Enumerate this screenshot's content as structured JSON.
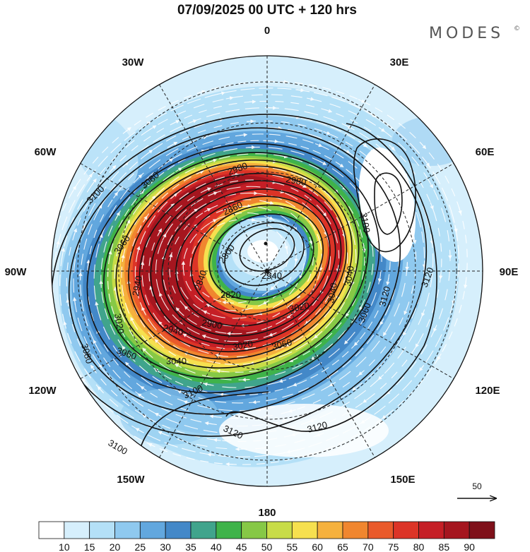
{
  "title": "07/09/2025  00 UTC  + 120 hrs",
  "brand": {
    "name": "MODES",
    "mark": "©"
  },
  "longitude_labels": [
    {
      "key": "0",
      "text": "0"
    },
    {
      "key": "30e",
      "text": "30E"
    },
    {
      "key": "60e",
      "text": "60E"
    },
    {
      "key": "90e",
      "text": "90E"
    },
    {
      "key": "120e",
      "text": "120E"
    },
    {
      "key": "150e",
      "text": "150E"
    },
    {
      "key": "180",
      "text": "180"
    },
    {
      "key": "150w",
      "text": "150W"
    },
    {
      "key": "120w",
      "text": "120W"
    },
    {
      "key": "90w",
      "text": "90W"
    },
    {
      "key": "60w",
      "text": "60W"
    },
    {
      "key": "30w",
      "text": "30W"
    }
  ],
  "contour_labels": [
    "2800",
    "2820",
    "2840",
    "2860",
    "2900",
    "2940",
    "2980",
    "3020",
    "3040",
    "3060",
    "3080",
    "3100",
    "3120"
  ],
  "contour_label_instances": [
    {
      "key": "c1",
      "text": "3100"
    },
    {
      "key": "c2",
      "text": "3080"
    },
    {
      "key": "c3",
      "text": "3060"
    },
    {
      "key": "c4",
      "text": "3020"
    },
    {
      "key": "c5",
      "text": "3080"
    },
    {
      "key": "c6",
      "text": "3060"
    },
    {
      "key": "c7",
      "text": "3040"
    },
    {
      "key": "c8",
      "text": "3020"
    },
    {
      "key": "c9",
      "text": "3100"
    },
    {
      "key": "c10",
      "text": "3100"
    },
    {
      "key": "c11",
      "text": "3120"
    },
    {
      "key": "c12",
      "text": "3120"
    },
    {
      "key": "c13",
      "text": "3060"
    },
    {
      "key": "c14",
      "text": "3040"
    },
    {
      "key": "c15",
      "text": "3120"
    },
    {
      "key": "c16",
      "text": "3120"
    },
    {
      "key": "c17",
      "text": "2900"
    },
    {
      "key": "c18",
      "text": "2940"
    },
    {
      "key": "c19",
      "text": "2820"
    },
    {
      "key": "c20",
      "text": "2840"
    },
    {
      "key": "c21",
      "text": "2800"
    },
    {
      "key": "c22",
      "text": "2980"
    },
    {
      "key": "c23",
      "text": "2860"
    },
    {
      "key": "c24",
      "text": "3040"
    },
    {
      "key": "c25",
      "text": "3060"
    },
    {
      "key": "c26",
      "text": "2940"
    },
    {
      "key": "c27",
      "text": "3020"
    },
    {
      "key": "c28",
      "text": "2980"
    },
    {
      "key": "c29",
      "text": "3100"
    },
    {
      "key": "c30",
      "text": "2940"
    }
  ],
  "reference_vector": {
    "value": "50"
  },
  "colorbar": {
    "labels": [
      "10",
      "15",
      "20",
      "25",
      "30",
      "35",
      "40",
      "45",
      "50",
      "55",
      "60",
      "65",
      "70",
      "75",
      "80",
      "85",
      "90"
    ],
    "colors": [
      "#ffffff",
      "#d6effc",
      "#b4e0f7",
      "#8fc9ef",
      "#62a7de",
      "#4388c8",
      "#40a48c",
      "#3fb34a",
      "#86c846",
      "#c8dc48",
      "#f6e04f",
      "#f5b13e",
      "#f0862f",
      "#e95a2b",
      "#dc3427",
      "#c51f26",
      "#a5161f",
      "#7f111a"
    ]
  },
  "speed_field": [
    {
      "r": 1.0,
      "rx": 305,
      "ry": 312,
      "dx": 0,
      "dy": 0,
      "color": "#d6effc"
    },
    {
      "r": 0.92,
      "rx": 285,
      "ry": 268,
      "dx": -12,
      "dy": 8,
      "color": "#b4e0f7"
    },
    {
      "r": 0.8,
      "rx": 262,
      "ry": 222,
      "dx": -34,
      "dy": 6,
      "color": "#8fc9ef"
    },
    {
      "r": 0.7,
      "rx": 238,
      "ry": 196,
      "dx": -42,
      "dy": 2,
      "color": "#62a7de"
    },
    {
      "r": 0.62,
      "rx": 218,
      "ry": 180,
      "dx": -46,
      "dy": 0,
      "color": "#4388c8"
    },
    {
      "r": 0.56,
      "rx": 202,
      "ry": 168,
      "dx": -46,
      "dy": -2,
      "color": "#40a48c"
    },
    {
      "r": 0.52,
      "rx": 192,
      "ry": 160,
      "dx": -46,
      "dy": -4,
      "color": "#3fb34a"
    },
    {
      "r": 0.49,
      "rx": 184,
      "ry": 154,
      "dx": -46,
      "dy": -6,
      "color": "#86c846"
    },
    {
      "r": 0.46,
      "rx": 176,
      "ry": 149,
      "dx": -46,
      "dy": -8,
      "color": "#c8dc48"
    },
    {
      "r": 0.44,
      "rx": 170,
      "ry": 144,
      "dx": -46,
      "dy": -10,
      "color": "#f6e04f"
    },
    {
      "r": 0.42,
      "rx": 164,
      "ry": 140,
      "dx": -46,
      "dy": -11,
      "color": "#f5b13e"
    },
    {
      "r": 0.4,
      "rx": 158,
      "ry": 136,
      "dx": -46,
      "dy": -12,
      "color": "#f0862f"
    },
    {
      "r": 0.38,
      "rx": 152,
      "ry": 131,
      "dx": -46,
      "dy": -13,
      "color": "#e95a2b"
    },
    {
      "r": 0.36,
      "rx": 146,
      "ry": 127,
      "dx": -46,
      "dy": -14,
      "color": "#dc3427"
    },
    {
      "r": 0.34,
      "rx": 140,
      "ry": 122,
      "dx": -46,
      "dy": -15,
      "color": "#c51f26"
    },
    {
      "r": 0.32,
      "rx": 134,
      "ry": 118,
      "dx": -46,
      "dy": -16,
      "color": "#a5161f"
    }
  ]
}
